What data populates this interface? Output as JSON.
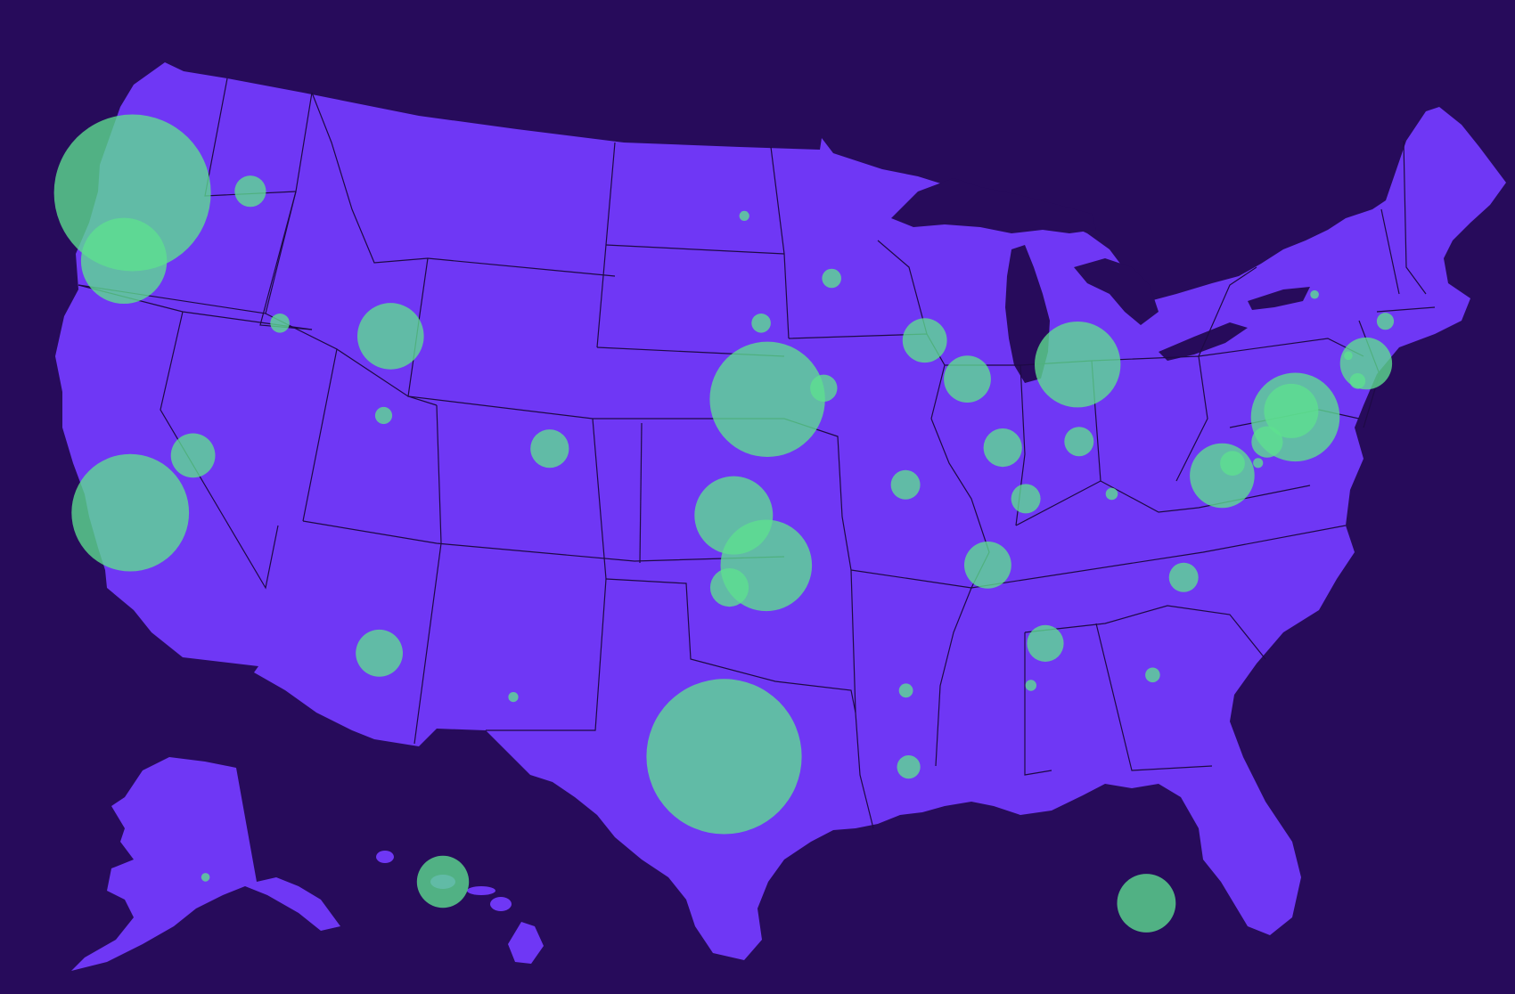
{
  "colors": {
    "background": "#270b5b",
    "land": "#6f37f5",
    "border": "#1e0a45",
    "bubble": "#5ee08f",
    "bubble_opacity": 0.78
  },
  "map": {
    "type": "proportional-symbol-map",
    "regions": [
      "contiguous-us",
      "alaska",
      "hawaii"
    ],
    "labels_visible": false,
    "legend_visible": false
  },
  "chart_data": {
    "type": "bubble-map",
    "value_units": "relative",
    "points": [
      {
        "id": "seattle",
        "lon": -122.33,
        "lat": 47.61,
        "value": 100
      },
      {
        "id": "portland",
        "lon": -122.68,
        "lat": 45.52,
        "value": 30
      },
      {
        "id": "spokane",
        "lon": -117.43,
        "lat": 47.66,
        "value": 4
      },
      {
        "id": "boise",
        "lon": -116.2,
        "lat": 43.6,
        "value": 1.5
      },
      {
        "id": "idaho-falls",
        "lon": -111.6,
        "lat": 43.2,
        "value": 18
      },
      {
        "id": "salt-lake-city",
        "lon": -111.89,
        "lat": 40.76,
        "value": 1.2
      },
      {
        "id": "reno",
        "lon": -119.81,
        "lat": 39.53,
        "value": 8
      },
      {
        "id": "san-francisco",
        "lon": -122.42,
        "lat": 37.77,
        "value": 56
      },
      {
        "id": "denver",
        "lon": -104.99,
        "lat": 39.74,
        "value": 6
      },
      {
        "id": "phoenix",
        "lon": -112.07,
        "lat": 33.45,
        "value": 9
      },
      {
        "id": "las-cruces",
        "lon": -106.5,
        "lat": 32.1,
        "value": 0.4
      },
      {
        "id": "austin",
        "lon": -97.74,
        "lat": 30.27,
        "value": 98
      },
      {
        "id": "sioux-falls",
        "lon": -96.9,
        "lat": 46.9,
        "value": 0.4
      },
      {
        "id": "minneapolis",
        "lon": -93.27,
        "lat": 44.98,
        "value": 1.5
      },
      {
        "id": "sioux-city",
        "lon": -96.2,
        "lat": 43.6,
        "value": 1.5
      },
      {
        "id": "omaha",
        "lon": -95.94,
        "lat": 41.26,
        "value": 54
      },
      {
        "id": "des-moines",
        "lon": -93.6,
        "lat": 41.6,
        "value": 3
      },
      {
        "id": "wichita",
        "lon": -97.34,
        "lat": 37.69,
        "value": 25
      },
      {
        "id": "tulsa",
        "lon": -95.99,
        "lat": 36.15,
        "value": 34
      },
      {
        "id": "oklahoma-city",
        "lon": -97.52,
        "lat": 35.47,
        "value": 6
      },
      {
        "id": "madison",
        "lon": -89.4,
        "lat": 43.07,
        "value": 8
      },
      {
        "id": "chicago",
        "lon": -87.63,
        "lat": 41.88,
        "value": 9
      },
      {
        "id": "st-louis",
        "lon": -90.2,
        "lat": 38.63,
        "value": 3.5
      },
      {
        "id": "indianapolis",
        "lon": -86.16,
        "lat": 39.77,
        "value": 6
      },
      {
        "id": "detroit",
        "lon": -83.05,
        "lat": 42.33,
        "value": 30
      },
      {
        "id": "columbus",
        "lon": -82.99,
        "lat": 39.96,
        "value": 3.5
      },
      {
        "id": "louisville",
        "lon": -85.2,
        "lat": 38.2,
        "value": 3.5
      },
      {
        "id": "nashville",
        "lon": -86.78,
        "lat": 36.16,
        "value": 9
      },
      {
        "id": "atlanta",
        "lon": -84.39,
        "lat": 33.75,
        "value": 5.5
      },
      {
        "id": "columbus-ga",
        "lon": -84.99,
        "lat": 32.46,
        "value": 0.5
      },
      {
        "id": "jackson",
        "lon": -90.18,
        "lat": 32.3,
        "value": 0.8
      },
      {
        "id": "new-orleans",
        "lon": -90.07,
        "lat": 29.95,
        "value": 2.2
      },
      {
        "id": "miami",
        "lon": -80.19,
        "lat": 25.76,
        "value": 14
      },
      {
        "id": "charleston",
        "lon": -79.93,
        "lat": 32.78,
        "value": 0.9
      },
      {
        "id": "raleigh",
        "lon": -78.64,
        "lat": 35.78,
        "value": 3.5
      },
      {
        "id": "charleston-wv",
        "lon": -81.63,
        "lat": 38.35,
        "value": 0.6
      },
      {
        "id": "washington-dc",
        "lon": -77.04,
        "lat": 38.91,
        "value": 17
      },
      {
        "id": "baltimore",
        "lon": -76.61,
        "lat": 39.29,
        "value": 2.5
      },
      {
        "id": "philadelphia",
        "lon": -75.17,
        "lat": 39.95,
        "value": 4
      },
      {
        "id": "wilmington",
        "lon": -75.55,
        "lat": 39.3,
        "value": 0.4
      },
      {
        "id": "new-york",
        "lon": -74.0,
        "lat": 40.71,
        "value": 32
      },
      {
        "id": "newark",
        "lon": -74.17,
        "lat": 40.9,
        "value": 12
      },
      {
        "id": "boston",
        "lon": -71.06,
        "lat": 42.36,
        "value": 11
      },
      {
        "id": "providence",
        "lon": -71.41,
        "lat": 41.82,
        "value": 1.0
      },
      {
        "id": "worcester",
        "lon": -71.8,
        "lat": 42.6,
        "value": 0.3
      },
      {
        "id": "burlington",
        "lon": -73.2,
        "lat": 44.48,
        "value": 0.3
      },
      {
        "id": "portland-me",
        "lon": -70.26,
        "lat": 43.66,
        "value": 1.2
      },
      {
        "id": "anchorage",
        "lon": -149.9,
        "lat": 61.22,
        "value": 0.3
      },
      {
        "id": "honolulu",
        "lon": -157.86,
        "lat": 21.31,
        "value": 11
      }
    ]
  }
}
